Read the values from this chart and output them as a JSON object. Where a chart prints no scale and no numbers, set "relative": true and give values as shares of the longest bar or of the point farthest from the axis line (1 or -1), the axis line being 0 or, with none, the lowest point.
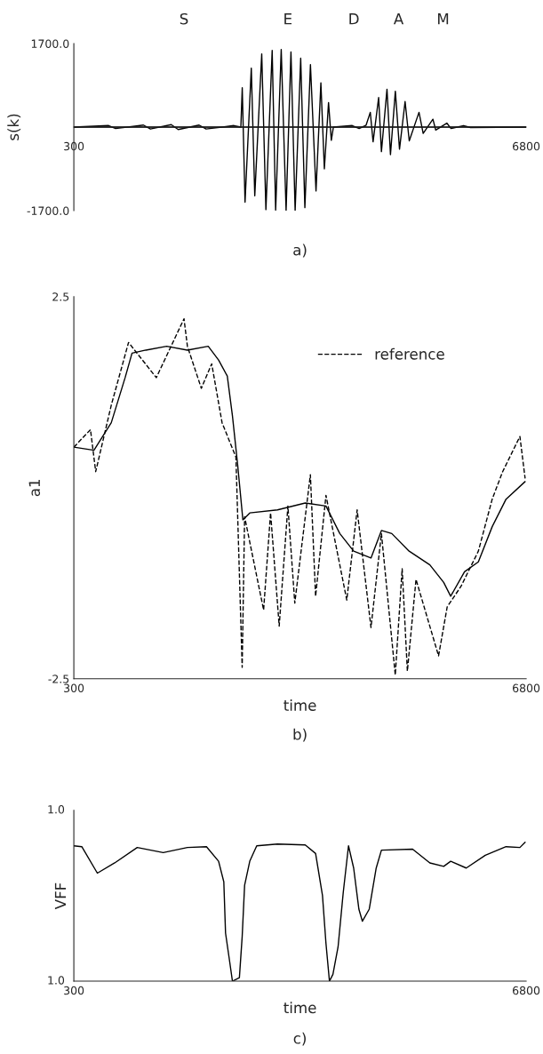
{
  "chart_data": [
    {
      "type": "line",
      "ylabel": "s(k)",
      "xlim": [
        300,
        6800
      ],
      "ylim": [
        -1700,
        1700
      ],
      "xticks": [
        300,
        6800
      ],
      "yticks": [
        {
          "value": 1700,
          "label": "1700.0"
        },
        {
          "value": -1700,
          "label": "-1700.0"
        }
      ],
      "ref_lines": [
        {
          "axis": "y",
          "value": 0
        }
      ],
      "annotations": [
        "S",
        "E",
        "D",
        "A",
        "M",
        "a)"
      ],
      "series": [
        {
          "color": "#000000",
          "x": [
            300,
            800,
            900,
            1300,
            1400,
            1700,
            1800,
            2100,
            2200,
            2600,
            2700,
            2720,
            2760,
            2850,
            2900,
            3000,
            3060,
            3150,
            3200,
            3280,
            3350,
            3420,
            3480,
            3560,
            3620,
            3700,
            3780,
            3850,
            3900,
            3960,
            4000,
            4030,
            4300,
            4400,
            4500,
            4560,
            4600,
            4680,
            4720,
            4800,
            4850,
            4920,
            4980,
            5060,
            5120,
            5260,
            5320,
            5460,
            5500,
            5660,
            5720,
            5900,
            6000,
            6800
          ],
          "values": [
            0,
            30,
            -30,
            40,
            -40,
            50,
            -50,
            40,
            -40,
            30,
            0,
            800,
            -1530,
            1200,
            -1400,
            1490,
            -1680,
            1560,
            -1690,
            1580,
            -1700,
            1530,
            -1700,
            1400,
            -1640,
            1270,
            -1300,
            900,
            -850,
            500,
            -270,
            0,
            30,
            -30,
            40,
            300,
            -300,
            600,
            -500,
            770,
            -560,
            730,
            -450,
            520,
            -280,
            300,
            -130,
            160,
            -60,
            80,
            -30,
            30,
            -10,
            0
          ]
        }
      ]
    },
    {
      "type": "line",
      "xlabel": "time",
      "ylabel": "a1",
      "xlim": [
        300,
        6800
      ],
      "ylim": [
        -2.5,
        2.5
      ],
      "xticks": [
        300,
        6800
      ],
      "yticks": [
        2.5,
        -2.5
      ],
      "legend": "top right",
      "annotations": [
        "b)"
      ],
      "series": [
        {
          "color": "#000000",
          "x": [
            300,
            589,
            838,
            1037,
            1136,
            1335,
            1634,
            1932,
            2231,
            2380,
            2505,
            2579,
            2654,
            2729,
            2828,
            3226,
            3625,
            3923,
            4122,
            4321,
            4570,
            4720,
            4869,
            5118,
            5416,
            5615,
            5715,
            5914,
            6113,
            6312,
            6511,
            6785
          ],
          "values": [
            0.53,
            0.49,
            0.85,
            1.44,
            1.76,
            1.8,
            1.85,
            1.8,
            1.85,
            1.67,
            1.46,
            0.94,
            0.3,
            -0.42,
            -0.33,
            -0.29,
            -0.2,
            -0.24,
            -0.6,
            -0.83,
            -0.92,
            -0.56,
            -0.6,
            -0.83,
            -1.01,
            -1.24,
            -1.42,
            -1.1,
            -0.97,
            -0.51,
            -0.15,
            0.08
          ]
        },
        {
          "name": "reference",
          "color": "#000000",
          "line_style": "dashed",
          "x": [
            300,
            539,
            614,
            838,
            1086,
            1485,
            1883,
            1932,
            2132,
            2281,
            2430,
            2629,
            2719,
            2754,
            3027,
            3127,
            3251,
            3376,
            3475,
            3699,
            3774,
            3923,
            4222,
            4371,
            4570,
            4720,
            4919,
            5018,
            5093,
            5217,
            5541,
            5665,
            5864,
            6113,
            6312,
            6462,
            6710,
            6785
          ],
          "values": [
            0.53,
            0.76,
            0.21,
            1.08,
            1.9,
            1.44,
            2.21,
            1.85,
            1.3,
            1.62,
            0.85,
            0.4,
            -2.35,
            -0.38,
            -1.6,
            -0.33,
            -1.81,
            -0.24,
            -1.51,
            0.17,
            -1.42,
            -0.1,
            -1.47,
            -0.29,
            -1.83,
            -0.6,
            -2.45,
            -1.06,
            -2.4,
            -1.2,
            -2.2,
            -1.56,
            -1.29,
            -0.83,
            -0.15,
            0.21,
            0.67,
            0.12
          ]
        }
      ]
    },
    {
      "type": "line",
      "xlabel": "time",
      "ylabel": "VFF",
      "xlim": [
        300,
        6800
      ],
      "relative": true,
      "xticks": [
        300,
        6800
      ],
      "annotations": [
        "1.0",
        "1.0",
        "c)"
      ],
      "series": [
        {
          "color": "#000000",
          "x": [
            300,
            414,
            638,
            887,
            1211,
            1584,
            1932,
            2206,
            2380,
            2455,
            2480,
            2530,
            2579,
            2679,
            2719,
            2754,
            2828,
            2928,
            3226,
            3625,
            3774,
            3873,
            3923,
            3973,
            4023,
            4097,
            4172,
            4247,
            4321,
            4396,
            4446,
            4545,
            4645,
            4720,
            5168,
            5416,
            5615,
            5715,
            5939,
            6213,
            6511,
            6710,
            6785
          ],
          "values": [
            0.975,
            0.969,
            0.778,
            0.852,
            0.963,
            0.926,
            0.963,
            0.969,
            0.864,
            0.716,
            0.346,
            0.173,
            0.0,
            0.025,
            0.321,
            0.691,
            0.864,
            0.975,
            0.988,
            0.981,
            0.92,
            0.617,
            0.272,
            0.0,
            0.049,
            0.247,
            0.642,
            0.975,
            0.815,
            0.519,
            0.432,
            0.519,
            0.815,
            0.944,
            0.951,
            0.852,
            0.827,
            0.864,
            0.815,
            0.907,
            0.969,
            0.963,
            1.0
          ]
        }
      ]
    }
  ]
}
